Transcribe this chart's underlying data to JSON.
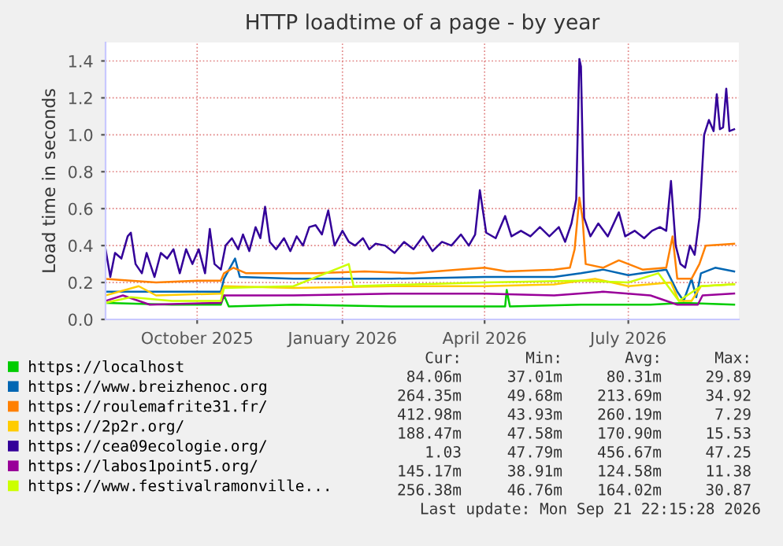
{
  "chart_data": {
    "type": "line",
    "title": "HTTP loadtime of a page - by year",
    "ylabel": "Load time in seconds",
    "xlim": [
      "2025-08-04",
      "2026-09-09"
    ],
    "xticks": [
      {
        "value": "2025-10-01",
        "label": "October 2025"
      },
      {
        "value": "2026-01-01",
        "label": "January 2026"
      },
      {
        "value": "2026-04-01",
        "label": "April 2026"
      },
      {
        "value": "2026-07-01",
        "label": "July 2026"
      }
    ],
    "ylim": [
      0,
      1.5
    ],
    "yticks": [
      {
        "value": 0,
        "label": "0.0"
      },
      {
        "value": 0.2,
        "label": "0.2"
      },
      {
        "value": 0.4,
        "label": "0.4"
      },
      {
        "value": 0.6,
        "label": "0.6"
      },
      {
        "value": 0.8,
        "label": "0.8"
      },
      {
        "value": 1.0,
        "label": "1.0"
      },
      {
        "value": 1.2,
        "label": "1.2"
      },
      {
        "value": 1.4,
        "label": "1.4"
      }
    ],
    "grid": true,
    "legend": "bottom",
    "marker": "none",
    "line_style": "solid",
    "series": [
      {
        "name": "https://localhost",
        "color": "#00cc00",
        "x": [
          "2025-08-04",
          "2025-09-15",
          "2025-10-16",
          "2025-10-18",
          "2025-10-21",
          "2025-12-01",
          "2026-02-01",
          "2026-04-14",
          "2026-04-15",
          "2026-04-17",
          "2026-06-01",
          "2026-07-15",
          "2026-08-05",
          "2026-09-06"
        ],
        "values": [
          0.09,
          0.08,
          0.08,
          0.13,
          0.07,
          0.08,
          0.07,
          0.07,
          0.16,
          0.07,
          0.08,
          0.08,
          0.09,
          0.08
        ]
      },
      {
        "name": "https://www.breizhenoc.org",
        "color": "#0066b3",
        "x": [
          "2025-08-04",
          "2025-09-01",
          "2025-10-16",
          "2025-10-18",
          "2025-10-25",
          "2025-10-28",
          "2025-12-01",
          "2026-02-01",
          "2026-04-01",
          "2026-05-15",
          "2026-06-01",
          "2026-06-15",
          "2026-07-01",
          "2026-07-25",
          "2026-08-01",
          "2026-08-05",
          "2026-08-10",
          "2026-08-13",
          "2026-08-16",
          "2026-08-25",
          "2026-09-06"
        ],
        "values": [
          0.15,
          0.15,
          0.15,
          0.22,
          0.33,
          0.23,
          0.22,
          0.22,
          0.23,
          0.23,
          0.25,
          0.27,
          0.24,
          0.27,
          0.15,
          0.1,
          0.22,
          0.12,
          0.25,
          0.28,
          0.26
        ]
      },
      {
        "name": "https://roulemafrite31.fr/",
        "color": "#ff8000",
        "x": [
          "2025-08-04",
          "2025-08-20",
          "2025-09-05",
          "2025-10-01",
          "2025-10-16",
          "2025-10-18",
          "2025-10-24",
          "2025-11-01",
          "2025-12-15",
          "2026-01-15",
          "2026-02-15",
          "2026-03-15",
          "2026-04-01",
          "2026-04-15",
          "2026-05-15",
          "2026-05-25",
          "2026-05-28",
          "2026-05-31",
          "2026-06-02",
          "2026-06-04",
          "2026-06-15",
          "2026-06-25",
          "2026-07-10",
          "2026-07-25",
          "2026-07-29",
          "2026-08-01",
          "2026-08-10",
          "2026-08-15",
          "2026-08-19",
          "2026-09-06"
        ],
        "values": [
          0.22,
          0.21,
          0.2,
          0.21,
          0.21,
          0.25,
          0.28,
          0.25,
          0.25,
          0.26,
          0.25,
          0.27,
          0.28,
          0.26,
          0.27,
          0.28,
          0.38,
          0.66,
          0.55,
          0.3,
          0.28,
          0.32,
          0.27,
          0.28,
          0.45,
          0.22,
          0.22,
          0.3,
          0.4,
          0.41
        ]
      },
      {
        "name": "https://2p2r.org/",
        "color": "#ffcc00",
        "x": [
          "2025-08-04",
          "2025-08-25",
          "2025-09-05",
          "2025-10-16",
          "2025-10-18",
          "2025-12-01",
          "2026-02-01",
          "2026-04-01",
          "2026-05-15",
          "2026-06-10",
          "2026-07-01",
          "2026-07-28",
          "2026-08-02",
          "2026-08-10",
          "2026-08-16",
          "2026-09-06"
        ],
        "values": [
          0.13,
          0.18,
          0.13,
          0.14,
          0.18,
          0.17,
          0.18,
          0.18,
          0.19,
          0.22,
          0.18,
          0.2,
          0.1,
          0.1,
          0.18,
          0.19
        ]
      },
      {
        "name": "https://cea09ecologie.org/",
        "color": "#330099",
        "x": [
          "2025-08-04",
          "2025-08-07",
          "2025-08-10",
          "2025-08-14",
          "2025-08-18",
          "2025-08-20",
          "2025-08-23",
          "2025-08-27",
          "2025-08-30",
          "2025-09-04",
          "2025-09-08",
          "2025-09-12",
          "2025-09-16",
          "2025-09-20",
          "2025-09-24",
          "2025-09-28",
          "2025-10-02",
          "2025-10-06",
          "2025-10-09",
          "2025-10-12",
          "2025-10-16",
          "2025-10-19",
          "2025-10-23",
          "2025-10-27",
          "2025-10-30",
          "2025-11-03",
          "2025-11-07",
          "2025-11-10",
          "2025-11-13",
          "2025-11-16",
          "2025-11-20",
          "2025-11-25",
          "2025-11-29",
          "2025-12-03",
          "2025-12-07",
          "2025-12-11",
          "2025-12-15",
          "2025-12-19",
          "2025-12-23",
          "2025-12-27",
          "2026-01-01",
          "2026-01-05",
          "2026-01-09",
          "2026-01-14",
          "2026-01-18",
          "2026-01-22",
          "2026-01-28",
          "2026-02-03",
          "2026-02-09",
          "2026-02-15",
          "2026-02-21",
          "2026-02-27",
          "2026-03-05",
          "2026-03-11",
          "2026-03-17",
          "2026-03-22",
          "2026-03-26",
          "2026-03-29",
          "2026-04-02",
          "2026-04-08",
          "2026-04-14",
          "2026-04-18",
          "2026-04-24",
          "2026-04-30",
          "2026-05-06",
          "2026-05-12",
          "2026-05-18",
          "2026-05-22",
          "2026-05-26",
          "2026-05-29",
          "2026-05-31",
          "2026-06-01",
          "2026-06-03",
          "2026-06-07",
          "2026-06-12",
          "2026-06-18",
          "2026-06-25",
          "2026-06-29",
          "2026-07-05",
          "2026-07-11",
          "2026-07-16",
          "2026-07-21",
          "2026-07-25",
          "2026-07-28",
          "2026-07-31",
          "2026-08-03",
          "2026-08-06",
          "2026-08-09",
          "2026-08-12",
          "2026-08-15",
          "2026-08-18",
          "2026-08-21",
          "2026-08-24",
          "2026-08-26",
          "2026-08-28",
          "2026-08-30",
          "2026-09-01",
          "2026-09-03",
          "2026-09-06"
        ],
        "values": [
          0.38,
          0.23,
          0.36,
          0.33,
          0.45,
          0.47,
          0.3,
          0.25,
          0.36,
          0.23,
          0.36,
          0.33,
          0.38,
          0.25,
          0.38,
          0.3,
          0.38,
          0.25,
          0.49,
          0.3,
          0.27,
          0.4,
          0.44,
          0.38,
          0.46,
          0.37,
          0.5,
          0.44,
          0.61,
          0.42,
          0.38,
          0.44,
          0.37,
          0.45,
          0.4,
          0.5,
          0.51,
          0.46,
          0.59,
          0.4,
          0.48,
          0.42,
          0.4,
          0.44,
          0.38,
          0.41,
          0.4,
          0.36,
          0.42,
          0.38,
          0.45,
          0.37,
          0.42,
          0.4,
          0.46,
          0.4,
          0.46,
          0.7,
          0.47,
          0.44,
          0.56,
          0.45,
          0.48,
          0.45,
          0.5,
          0.45,
          0.5,
          0.42,
          0.52,
          0.65,
          1.41,
          1.37,
          0.55,
          0.45,
          0.52,
          0.45,
          0.58,
          0.45,
          0.48,
          0.44,
          0.48,
          0.5,
          0.48,
          0.75,
          0.4,
          0.3,
          0.28,
          0.4,
          0.35,
          0.55,
          1.0,
          1.08,
          1.02,
          1.22,
          1.03,
          1.04,
          1.25,
          1.02,
          1.03
        ]
      },
      {
        "name": "https://labos1point5.org/",
        "color": "#990099",
        "x": [
          "2025-08-04",
          "2025-08-15",
          "2025-09-01",
          "2025-10-16",
          "2025-10-18",
          "2025-12-01",
          "2026-02-01",
          "2026-04-01",
          "2026-05-15",
          "2026-06-15",
          "2026-07-15",
          "2026-08-01",
          "2026-08-14",
          "2026-08-17",
          "2026-09-06"
        ],
        "values": [
          0.1,
          0.13,
          0.08,
          0.09,
          0.13,
          0.13,
          0.14,
          0.14,
          0.13,
          0.15,
          0.13,
          0.08,
          0.08,
          0.13,
          0.14
        ]
      },
      {
        "name": "https://www.festivalramonville...",
        "color": "#ccff00",
        "x": [
          "2025-08-04",
          "2025-08-20",
          "2025-09-15",
          "2025-10-16",
          "2025-10-18",
          "2025-12-01",
          "2026-01-05",
          "2026-01-08",
          "2026-02-15",
          "2026-04-01",
          "2026-06-01",
          "2026-07-01",
          "2026-07-20",
          "2026-08-02",
          "2026-08-16",
          "2026-09-06"
        ],
        "values": [
          0.09,
          0.12,
          0.1,
          0.1,
          0.17,
          0.18,
          0.3,
          0.18,
          0.19,
          0.2,
          0.21,
          0.2,
          0.25,
          0.1,
          0.18,
          0.19
        ]
      }
    ],
    "annotations": [
      "Cur:",
      "Min:",
      "Avg:",
      "Max:",
      "84.06m",
      "37.01m",
      "80.31m",
      "29.89",
      "264.35m",
      "49.68m",
      "213.69m",
      "34.92",
      "412.98m",
      "43.93m",
      "260.19m",
      "7.29",
      "188.47m",
      "47.58m",
      "170.90m",
      "15.53",
      "1.03",
      "47.79m",
      "456.67m",
      "47.25",
      "145.17m",
      "38.91m",
      "124.58m",
      "11.38",
      "256.38m",
      "46.76m",
      "164.02m",
      "30.87",
      "Last update: Mon Sep 21 22:15:28 2026"
    ]
  }
}
